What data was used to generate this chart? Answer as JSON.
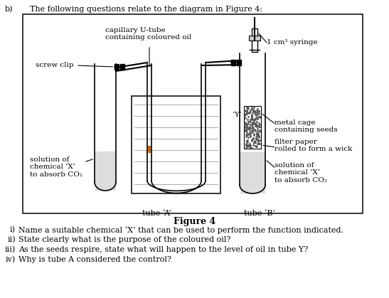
{
  "title_prefix": "b)",
  "title_text": "The following questions relate to the diagram in Figure 4:",
  "figure_label": "Figure 4",
  "bg_color": "#ffffff",
  "diagram_labels": {
    "capillary": "capillary U-tube\ncontaining coloured oil",
    "syringe": "1 cm³ syringe",
    "screw_clip": "screw clip",
    "metal_cage": "metal cage\ncontaining seeds",
    "filter_paper": "filter paper\nrolled to form a wick",
    "chemical_left": "solution of\nchemical ‘X’\nto absorb CO₂",
    "chemical_right": "solution of\nchemical ‘X’\nto absorb CO₂",
    "tube_a": "tube ‘A’",
    "tube_b": "tube ‘B’",
    "Y_label": "‘Y’"
  },
  "q1": "i)    Name a suitable chemical ‘X’ that can be used to perform the function indicated.",
  "q2": "ii)   State clearly what is the purpose of the coloured oil?",
  "q3": "iii)  As the seeds respire, state what will happen to the level of oil in tube Y?",
  "q4": "iv)   Why is tube A considered the control?"
}
